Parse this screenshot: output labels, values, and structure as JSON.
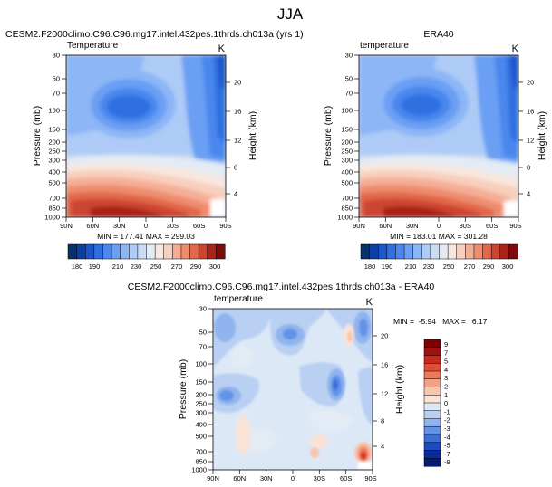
{
  "figure": {
    "title": "JJA"
  },
  "chart_data": [
    {
      "type": "heatmap",
      "panel_title": "CESM2.F2000climo.C96.C96.mg17.intel.432pes.1thrds.ch013a (yrs 1)",
      "left_label": "Temperature",
      "units": "K",
      "ylabel": "Pressure (mb)",
      "y2label": "Height (km)",
      "x_ticks": [
        "90N",
        "60N",
        "30N",
        "0",
        "30S",
        "60S",
        "90S"
      ],
      "y_ticks": [
        "30",
        "50",
        "70",
        "100",
        "150",
        "200",
        "250",
        "300",
        "400",
        "500",
        "700",
        "850",
        "1000"
      ],
      "height_ticks": [
        "20",
        "16",
        "12",
        "8",
        "4"
      ],
      "stats": "MIN = 177.41   MAX = 299.03",
      "min": 177.41,
      "max": 299.03
    },
    {
      "type": "heatmap",
      "panel_title": "ERA40",
      "left_label": "temperature",
      "units": "K",
      "ylabel": "Pressure (mb)",
      "y2label": "Height (km)",
      "x_ticks": [
        "90N",
        "60N",
        "30N",
        "0",
        "30S",
        "60S",
        "90S"
      ],
      "y_ticks": [
        "30",
        "50",
        "70",
        "100",
        "150",
        "200",
        "250",
        "300",
        "400",
        "500",
        "700",
        "850",
        "1000"
      ],
      "height_ticks": [
        "20",
        "16",
        "12",
        "8",
        "4"
      ],
      "stats": "MIN = 183.01   MAX = 301.28",
      "min": 183.01,
      "max": 301.28
    },
    {
      "type": "heatmap",
      "panel_title": "CESM2.F2000climo.C96.C96.mg17.intel.432pes.1thrds.ch013a - ERA40",
      "left_label": "temperature",
      "units": "K",
      "ylabel": "Pressure (mb)",
      "y2label": "Height (km)",
      "x_ticks": [
        "90N",
        "60N",
        "30N",
        "0",
        "30S",
        "60S",
        "90S"
      ],
      "y_ticks": [
        "30",
        "50",
        "70",
        "100",
        "150",
        "200",
        "250",
        "300",
        "400",
        "500",
        "700",
        "850",
        "1000"
      ],
      "height_ticks": [
        "20",
        "16",
        "12",
        "8",
        "4"
      ],
      "stats": "MIN =  -5.94   MAX =   6.17",
      "min": -5.94,
      "max": 6.17
    }
  ],
  "colorbar_abs": {
    "labels": [
      "180",
      "190",
      "210",
      "230",
      "250",
      "270",
      "290",
      "300"
    ],
    "colors": [
      "#08306b",
      "#0a3fa3",
      "#1b55c9",
      "#2f6fe0",
      "#4a87ee",
      "#6a9ff3",
      "#8cb6f6",
      "#aecbf7",
      "#cbdcf5",
      "#e3ebf4",
      "#f7e7de",
      "#f8cfbc",
      "#f4ae96",
      "#ee8c6e",
      "#e1684a",
      "#cc4530",
      "#a82418",
      "#7a0c0c"
    ]
  },
  "colorbar_diff": {
    "labels": [
      "9",
      "7",
      "5",
      "4",
      "3",
      "2",
      "1",
      "0",
      "-1",
      "-2",
      "-3",
      "-4",
      "-5",
      "-7",
      "-9"
    ],
    "colors": [
      "#7f0000",
      "#a01010",
      "#c52a1e",
      "#e04e38",
      "#ee7858",
      "#f4a084",
      "#f8c5ae",
      "#fae3d6",
      "#dde8f7",
      "#b9d0f3",
      "#8fb4ee",
      "#6393e6",
      "#3a6fd9",
      "#1d4cc0",
      "#0a2b9a",
      "#061a70"
    ]
  }
}
